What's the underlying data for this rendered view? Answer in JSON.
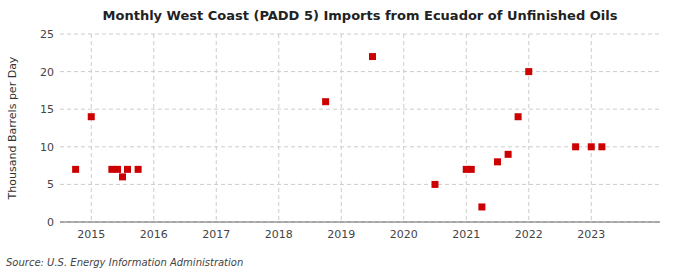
{
  "chart_data": {
    "type": "scatter",
    "title": "Monthly West Coast (PADD 5) Imports from Ecuador of Unfinished Oils",
    "ylabel": "Thousand Barrels per Day",
    "source": "Source: U.S. Energy Information Administration",
    "x": [
      2014.75,
      2015.0,
      2015.33,
      2015.42,
      2015.5,
      2015.58,
      2015.75,
      2018.75,
      2019.5,
      2020.5,
      2021.0,
      2021.08,
      2021.25,
      2021.5,
      2021.67,
      2021.83,
      2022.0,
      2022.75,
      2023.0,
      2023.17
    ],
    "values": [
      7.0,
      14.0,
      7.0,
      7.0,
      6.0,
      7.0,
      7.0,
      16.0,
      22.0,
      5.0,
      7.0,
      7.0,
      2.0,
      8.0,
      9.0,
      14.0,
      20.0,
      10.0,
      10.0,
      10.0
    ],
    "color": "#cc0000",
    "marker": "square",
    "grid": true,
    "xlim": [
      2014.5,
      2024.1
    ],
    "ylim": [
      0,
      25
    ],
    "xticks": [
      2015,
      2016,
      2017,
      2018,
      2019,
      2020,
      2021,
      2022,
      2023
    ],
    "yticks": [
      0,
      5,
      10,
      15,
      20,
      25
    ]
  }
}
